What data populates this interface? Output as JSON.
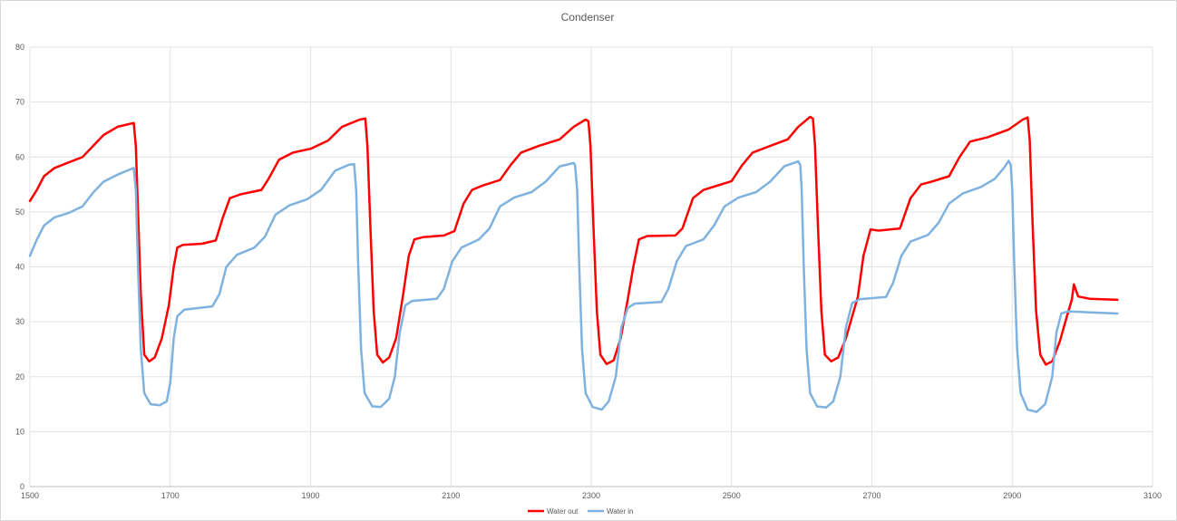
{
  "chart_data": {
    "type": "line",
    "title": "Condenser",
    "xlim": [
      1500,
      3100
    ],
    "ylim": [
      0,
      80
    ],
    "x_ticks": [
      1500,
      1700,
      1900,
      2100,
      2300,
      2500,
      2700,
      2900,
      3100
    ],
    "y_ticks": [
      0,
      10,
      20,
      30,
      40,
      50,
      60,
      70,
      80
    ],
    "grid": true,
    "legend_position": "bottom-center",
    "series": [
      {
        "name": "Water out",
        "color": "#ff0000",
        "points": [
          [
            1500,
            52
          ],
          [
            1510,
            54
          ],
          [
            1520,
            56.5
          ],
          [
            1535,
            58
          ],
          [
            1555,
            59
          ],
          [
            1575,
            60
          ],
          [
            1590,
            62
          ],
          [
            1605,
            64
          ],
          [
            1625,
            65.5
          ],
          [
            1648,
            66.2
          ],
          [
            1651,
            62
          ],
          [
            1654,
            50
          ],
          [
            1658,
            35
          ],
          [
            1663,
            24
          ],
          [
            1670,
            22.8
          ],
          [
            1678,
            23.5
          ],
          [
            1688,
            27
          ],
          [
            1698,
            33
          ],
          [
            1705,
            40
          ],
          [
            1710,
            43.5
          ],
          [
            1718,
            44
          ],
          [
            1745,
            44.2
          ],
          [
            1765,
            44.8
          ],
          [
            1775,
            49
          ],
          [
            1785,
            52.5
          ],
          [
            1800,
            53.2
          ],
          [
            1830,
            54
          ],
          [
            1840,
            56
          ],
          [
            1855,
            59.5
          ],
          [
            1875,
            60.8
          ],
          [
            1900,
            61.5
          ],
          [
            1925,
            63
          ],
          [
            1945,
            65.5
          ],
          [
            1970,
            66.8
          ],
          [
            1978,
            67
          ],
          [
            1981,
            62
          ],
          [
            1985,
            48
          ],
          [
            1990,
            32
          ],
          [
            1995,
            24
          ],
          [
            2003,
            22.6
          ],
          [
            2012,
            23.5
          ],
          [
            2022,
            27
          ],
          [
            2032,
            35
          ],
          [
            2040,
            42
          ],
          [
            2048,
            45
          ],
          [
            2060,
            45.4
          ],
          [
            2090,
            45.7
          ],
          [
            2105,
            46.5
          ],
          [
            2118,
            51.5
          ],
          [
            2130,
            54
          ],
          [
            2145,
            54.8
          ],
          [
            2170,
            55.8
          ],
          [
            2185,
            58.5
          ],
          [
            2200,
            60.8
          ],
          [
            2225,
            62
          ],
          [
            2255,
            63.2
          ],
          [
            2275,
            65.5
          ],
          [
            2292,
            66.8
          ],
          [
            2296,
            66.5
          ],
          [
            2299,
            62
          ],
          [
            2303,
            48
          ],
          [
            2308,
            32
          ],
          [
            2313,
            24
          ],
          [
            2322,
            22.3
          ],
          [
            2332,
            23
          ],
          [
            2342,
            27
          ],
          [
            2352,
            34
          ],
          [
            2360,
            40
          ],
          [
            2368,
            45
          ],
          [
            2380,
            45.6
          ],
          [
            2420,
            45.7
          ],
          [
            2430,
            47
          ],
          [
            2445,
            52.5
          ],
          [
            2460,
            54
          ],
          [
            2475,
            54.6
          ],
          [
            2500,
            55.6
          ],
          [
            2515,
            58.5
          ],
          [
            2530,
            60.8
          ],
          [
            2555,
            62
          ],
          [
            2580,
            63.2
          ],
          [
            2595,
            65.5
          ],
          [
            2612,
            67.3
          ],
          [
            2616,
            67
          ],
          [
            2619,
            62
          ],
          [
            2623,
            48
          ],
          [
            2628,
            32
          ],
          [
            2633,
            24
          ],
          [
            2642,
            22.8
          ],
          [
            2652,
            23.5
          ],
          [
            2663,
            27
          ],
          [
            2672,
            31
          ],
          [
            2680,
            34.5
          ],
          [
            2688,
            42
          ],
          [
            2698,
            46.8
          ],
          [
            2710,
            46.6
          ],
          [
            2740,
            47
          ],
          [
            2755,
            52.5
          ],
          [
            2770,
            55
          ],
          [
            2785,
            55.5
          ],
          [
            2810,
            56.5
          ],
          [
            2825,
            60
          ],
          [
            2840,
            62.8
          ],
          [
            2865,
            63.6
          ],
          [
            2895,
            65
          ],
          [
            2915,
            66.8
          ],
          [
            2922,
            67.2
          ],
          [
            2925,
            63
          ],
          [
            2929,
            48
          ],
          [
            2934,
            32
          ],
          [
            2940,
            24
          ],
          [
            2948,
            22.2
          ],
          [
            2957,
            22.8
          ],
          [
            2968,
            26.5
          ],
          [
            2978,
            31
          ],
          [
            2985,
            34
          ],
          [
            2988,
            36.8
          ],
          [
            2994,
            34.6
          ],
          [
            3010,
            34.2
          ],
          [
            3050,
            34
          ]
        ]
      },
      {
        "name": "Water in",
        "color": "#7fb2df",
        "points": [
          [
            1500,
            42
          ],
          [
            1510,
            45
          ],
          [
            1520,
            47.5
          ],
          [
            1535,
            49
          ],
          [
            1555,
            49.8
          ],
          [
            1575,
            51
          ],
          [
            1590,
            53.5
          ],
          [
            1605,
            55.5
          ],
          [
            1625,
            56.8
          ],
          [
            1648,
            58
          ],
          [
            1651,
            54
          ],
          [
            1654,
            40
          ],
          [
            1658,
            25
          ],
          [
            1663,
            17
          ],
          [
            1672,
            15
          ],
          [
            1685,
            14.8
          ],
          [
            1695,
            15.5
          ],
          [
            1700,
            19
          ],
          [
            1705,
            27
          ],
          [
            1710,
            31
          ],
          [
            1720,
            32.2
          ],
          [
            1760,
            32.8
          ],
          [
            1770,
            35
          ],
          [
            1780,
            40
          ],
          [
            1795,
            42.2
          ],
          [
            1820,
            43.5
          ],
          [
            1835,
            45.5
          ],
          [
            1850,
            49.5
          ],
          [
            1870,
            51.2
          ],
          [
            1895,
            52.3
          ],
          [
            1915,
            54
          ],
          [
            1935,
            57.5
          ],
          [
            1955,
            58.6
          ],
          [
            1962,
            58.7
          ],
          [
            1965,
            54
          ],
          [
            1968,
            40
          ],
          [
            1972,
            25
          ],
          [
            1977,
            17
          ],
          [
            1988,
            14.6
          ],
          [
            2000,
            14.5
          ],
          [
            2012,
            16
          ],
          [
            2020,
            20
          ],
          [
            2027,
            28
          ],
          [
            2035,
            33
          ],
          [
            2045,
            33.8
          ],
          [
            2080,
            34.2
          ],
          [
            2090,
            36
          ],
          [
            2102,
            41
          ],
          [
            2115,
            43.5
          ],
          [
            2140,
            45
          ],
          [
            2155,
            47
          ],
          [
            2170,
            51
          ],
          [
            2190,
            52.6
          ],
          [
            2215,
            53.6
          ],
          [
            2235,
            55.5
          ],
          [
            2255,
            58.3
          ],
          [
            2275,
            58.9
          ],
          [
            2277,
            58.5
          ],
          [
            2280,
            54
          ],
          [
            2283,
            40
          ],
          [
            2287,
            25
          ],
          [
            2292,
            17
          ],
          [
            2302,
            14.5
          ],
          [
            2315,
            14
          ],
          [
            2325,
            15.5
          ],
          [
            2335,
            20
          ],
          [
            2343,
            29
          ],
          [
            2352,
            32.5
          ],
          [
            2362,
            33.3
          ],
          [
            2400,
            33.6
          ],
          [
            2410,
            36
          ],
          [
            2422,
            41
          ],
          [
            2435,
            43.8
          ],
          [
            2460,
            45
          ],
          [
            2475,
            47.5
          ],
          [
            2490,
            51
          ],
          [
            2510,
            52.6
          ],
          [
            2535,
            53.6
          ],
          [
            2555,
            55.5
          ],
          [
            2575,
            58.3
          ],
          [
            2595,
            59.2
          ],
          [
            2598,
            58.5
          ],
          [
            2600,
            54
          ],
          [
            2603,
            40
          ],
          [
            2607,
            25
          ],
          [
            2612,
            17
          ],
          [
            2622,
            14.6
          ],
          [
            2635,
            14.4
          ],
          [
            2645,
            15.5
          ],
          [
            2655,
            20
          ],
          [
            2663,
            29
          ],
          [
            2672,
            33.4
          ],
          [
            2682,
            34.1
          ],
          [
            2720,
            34.5
          ],
          [
            2730,
            37
          ],
          [
            2742,
            42
          ],
          [
            2755,
            44.6
          ],
          [
            2780,
            45.8
          ],
          [
            2795,
            48
          ],
          [
            2810,
            51.5
          ],
          [
            2830,
            53.4
          ],
          [
            2855,
            54.5
          ],
          [
            2875,
            56
          ],
          [
            2888,
            58
          ],
          [
            2895,
            59.3
          ],
          [
            2898,
            58.5
          ],
          [
            2900,
            54
          ],
          [
            2903,
            40
          ],
          [
            2907,
            25
          ],
          [
            2912,
            17
          ],
          [
            2922,
            14
          ],
          [
            2935,
            13.6
          ],
          [
            2947,
            15
          ],
          [
            2957,
            20
          ],
          [
            2963,
            28
          ],
          [
            2970,
            31.5
          ],
          [
            2980,
            31.9
          ],
          [
            3010,
            31.7
          ],
          [
            3050,
            31.5
          ]
        ]
      }
    ]
  }
}
